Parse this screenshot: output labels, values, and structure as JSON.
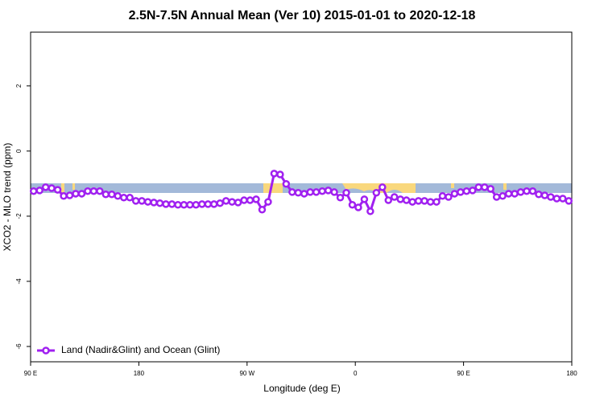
{
  "chart_data": {
    "type": "line",
    "title": "2.5N-7.5N Annual Mean (Ver 10)   2015-01-01 to 2020-12-18",
    "x_label": "Longitude (deg E)",
    "y_label": "XCO2 - MLO trend (ppm)",
    "xlim": [
      90,
      540
    ],
    "xticks": [
      {
        "value": 90,
        "label": "90 E"
      },
      180,
      {
        "value": 270,
        "label": "90 W"
      },
      {
        "value": 360,
        "label": "0"
      },
      {
        "value": 450,
        "label": "90 E"
      },
      {
        "value": 540,
        "label": "180"
      }
    ],
    "ylim": [
      -6.47,
      3.65
    ],
    "yticks": [
      -6,
      -4,
      -2,
      0,
      2
    ],
    "legend": "bottom-left",
    "x": [
      92.5,
      97.5,
      102.5,
      107.5,
      112.5,
      117.5,
      122.5,
      127.5,
      132.5,
      137.5,
      142.5,
      147.5,
      152.5,
      157.5,
      162.5,
      167.5,
      172.5,
      177.5,
      182.5,
      187.5,
      192.5,
      197.5,
      202.5,
      207.5,
      212.5,
      217.5,
      222.5,
      227.5,
      232.5,
      237.5,
      242.5,
      247.5,
      252.5,
      257.5,
      262.5,
      267.5,
      272.5,
      277.5,
      282.5,
      287.5,
      292.5,
      297.5,
      302.5,
      307.5,
      312.5,
      317.5,
      322.5,
      327.5,
      332.5,
      337.5,
      342.5,
      347.5,
      352.5,
      357.5,
      362.5,
      367.5,
      372.5,
      377.5,
      382.5,
      387.5,
      392.5,
      397.5,
      402.5,
      407.5,
      412.5,
      417.5,
      422.5,
      427.5,
      432.5,
      437.5,
      442.5,
      447.5,
      452.5,
      457.5,
      462.5,
      467.5,
      472.5,
      477.5,
      482.5,
      487.5,
      492.5,
      497.5,
      502.5,
      507.5,
      512.5,
      517.5,
      522.5,
      527.5,
      532.5,
      537.5
    ],
    "series": [
      {
        "name": "Land (Nadir&Glint) and Ocean (Glint)",
        "color": "#a020f0",
        "values": [
          -1.23,
          -1.21,
          -1.11,
          -1.14,
          -1.19,
          -1.38,
          -1.36,
          -1.31,
          -1.31,
          -1.23,
          -1.23,
          -1.23,
          -1.33,
          -1.33,
          -1.38,
          -1.43,
          -1.43,
          -1.53,
          -1.53,
          -1.56,
          -1.58,
          -1.6,
          -1.63,
          -1.63,
          -1.65,
          -1.65,
          -1.65,
          -1.65,
          -1.63,
          -1.63,
          -1.63,
          -1.6,
          -1.53,
          -1.56,
          -1.58,
          -1.51,
          -1.51,
          -1.48,
          -1.8,
          -1.56,
          -0.69,
          -0.72,
          -1.01,
          -1.26,
          -1.28,
          -1.31,
          -1.26,
          -1.26,
          -1.23,
          -1.21,
          -1.26,
          -1.43,
          -1.28,
          -1.65,
          -1.73,
          -1.48,
          -1.85,
          -1.28,
          -1.11,
          -1.51,
          -1.41,
          -1.48,
          -1.51,
          -1.56,
          -1.53,
          -1.53,
          -1.56,
          -1.56,
          -1.38,
          -1.41,
          -1.31,
          -1.26,
          -1.23,
          -1.21,
          -1.11,
          -1.11,
          -1.16,
          -1.41,
          -1.38,
          -1.31,
          -1.31,
          -1.26,
          -1.23,
          -1.23,
          -1.33,
          -1.36,
          -1.41,
          -1.46,
          -1.46,
          -1.53
        ]
      }
    ]
  }
}
